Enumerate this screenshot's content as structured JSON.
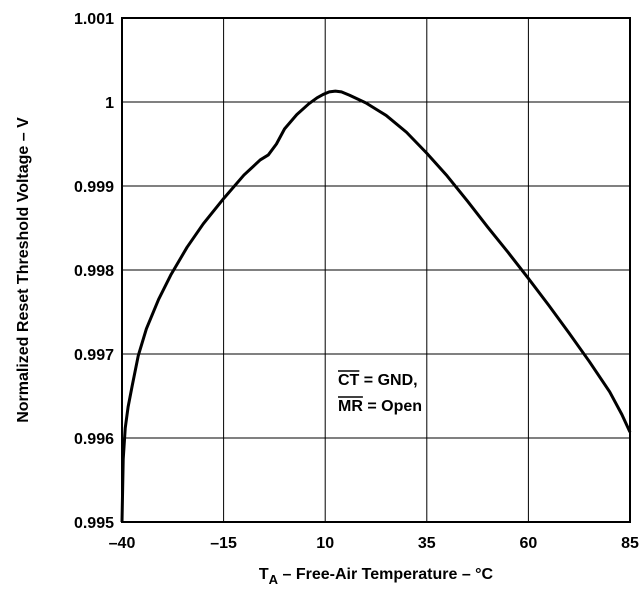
{
  "chart_data": {
    "type": "line",
    "xlabel_prefix": "T",
    "xlabel_sub": "A",
    "xlabel_rest": " – Free-Air Temperature – °C",
    "ylabel": "Normalized Reset Threshold Voltage – V",
    "xlim": [
      -40,
      85
    ],
    "ylim": [
      0.995,
      1.001
    ],
    "x_ticks": [
      -40,
      -15,
      10,
      35,
      60,
      85
    ],
    "x_tick_labels": [
      "–40",
      "–15",
      "10",
      "35",
      "60",
      "85"
    ],
    "y_ticks": [
      0.995,
      0.996,
      0.997,
      0.998,
      0.999,
      1.0,
      1.001
    ],
    "y_tick_labels": [
      "0.995",
      "0.996",
      "0.997",
      "0.998",
      "0.999",
      "1",
      "1.001"
    ],
    "grid": true,
    "legend": "none",
    "annotations": {
      "line1_overbar": "CT",
      "line1_rest": " = GND,",
      "line2_overbar": "MR",
      "line2_rest": " = Open"
    },
    "series": [
      {
        "x": [
          -40,
          -39.7,
          -39.2,
          -38.5,
          -37.5,
          -36,
          -34,
          -31,
          -28,
          -24,
          -20,
          -15,
          -10,
          -6,
          -4,
          -2,
          0,
          3,
          6,
          8,
          9.5,
          11,
          12.5,
          14,
          16,
          20,
          25,
          30,
          35,
          40,
          45,
          50,
          55,
          60,
          65,
          70,
          75,
          80,
          83,
          85
        ],
        "y": [
          0.995,
          0.99575,
          0.99612,
          0.99637,
          0.99662,
          0.99698,
          0.9973,
          0.99765,
          0.99794,
          0.99827,
          0.99855,
          0.99885,
          0.99913,
          0.99931,
          0.99937,
          0.9995,
          0.99968,
          0.99985,
          0.99998,
          1.00005,
          1.00009,
          1.00012,
          1.00013,
          1.00012,
          1.00008,
          0.99999,
          0.99984,
          0.99964,
          0.99939,
          0.99912,
          0.99882,
          0.99851,
          0.99821,
          0.9979,
          0.99758,
          0.99725,
          0.99691,
          0.99655,
          0.99628,
          0.99607
        ],
        "color": "#000000"
      }
    ]
  }
}
